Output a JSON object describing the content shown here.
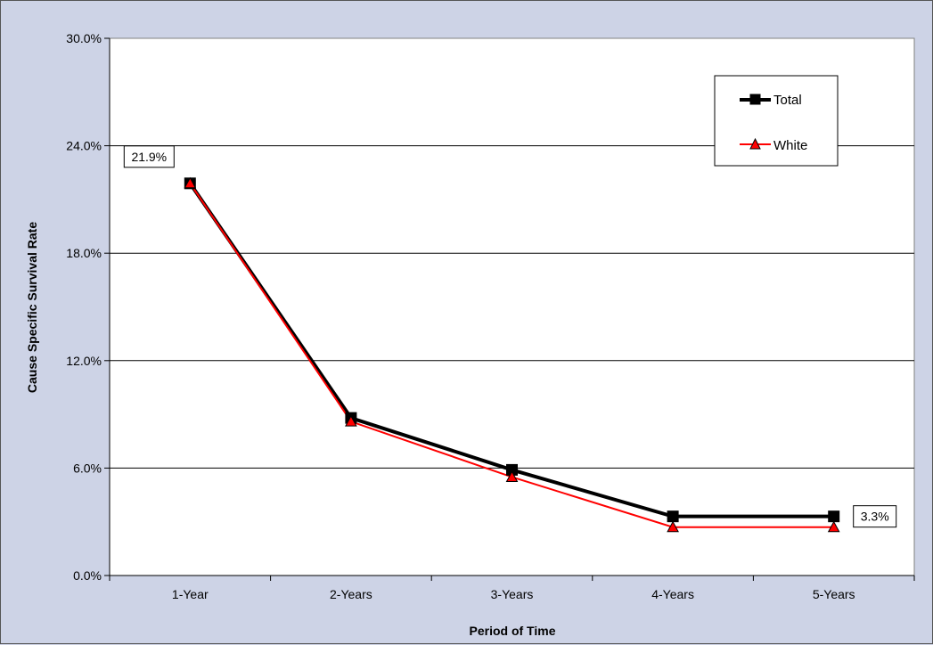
{
  "chart_data": {
    "type": "line",
    "title": "",
    "xlabel": "Period of Time",
    "ylabel": "Cause Specific Survival Rate",
    "ylim": [
      0,
      30
    ],
    "yticks": [
      "0.0%",
      "6.0%",
      "12.0%",
      "18.0%",
      "24.0%",
      "30.0%"
    ],
    "grid": true,
    "legend_position": "top-right",
    "categories": [
      "1-Year",
      "2-Years",
      "3-Years",
      "4-Years",
      "5-Years"
    ],
    "series": [
      {
        "name": "Total",
        "values": [
          21.9,
          8.8,
          5.9,
          3.3,
          3.3
        ],
        "color": "#000000",
        "marker": "square"
      },
      {
        "name": "White",
        "values": [
          21.9,
          8.6,
          5.5,
          2.7,
          2.7
        ],
        "color": "#ff0000",
        "marker": "triangle"
      }
    ],
    "data_labels": [
      {
        "series": 0,
        "index": 0,
        "text": "21.9%"
      },
      {
        "series": 0,
        "index": 4,
        "text": "3.3%"
      }
    ]
  }
}
